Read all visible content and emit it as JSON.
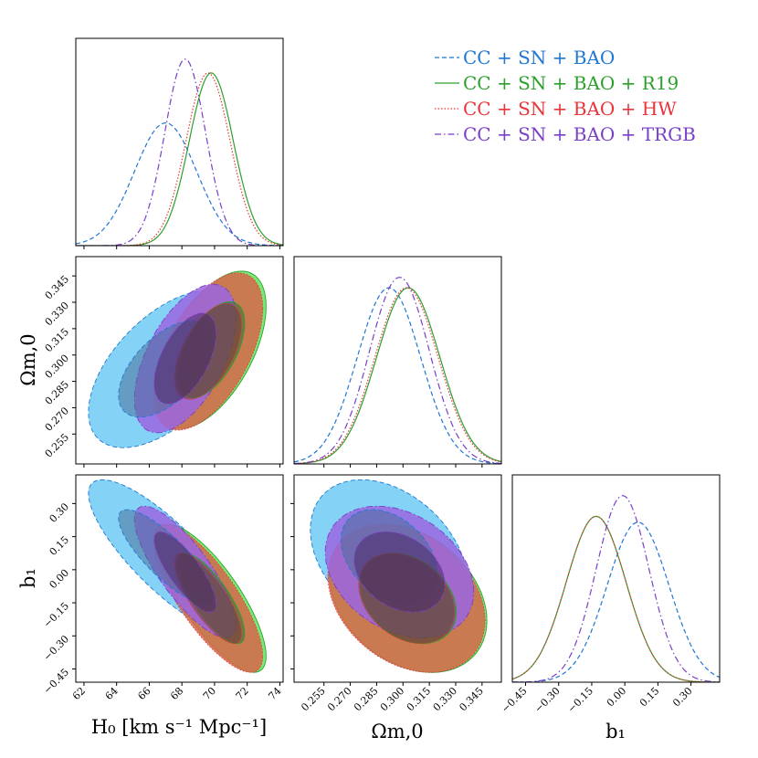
{
  "chart_data": {
    "type": "corner",
    "title": "",
    "parameters": [
      {
        "key": "H0",
        "label": "H₀ [km s⁻¹ Mpc⁻¹]",
        "range": [
          61.5,
          74.2
        ],
        "ticks": [
          "62",
          "64",
          "66",
          "68",
          "70",
          "72",
          "74"
        ],
        "tick_values": [
          62,
          64,
          66,
          68,
          70,
          72,
          74
        ]
      },
      {
        "key": "Om",
        "label": "Ωm,0",
        "range": [
          0.238,
          0.356
        ],
        "ticks": [
          "0.255",
          "0.270",
          "0.285",
          "0.300",
          "0.315",
          "0.330",
          "0.345"
        ],
        "tick_values": [
          0.255,
          0.27,
          0.285,
          0.3,
          0.315,
          0.33,
          0.345
        ]
      },
      {
        "key": "b1",
        "label": "b₁",
        "range": [
          -0.51,
          0.43
        ],
        "ticks": [
          "−0.45",
          "−0.30",
          "−0.15",
          "0.00",
          "0.15",
          "0.30"
        ],
        "tick_values": [
          -0.45,
          -0.3,
          -0.15,
          0.0,
          0.15,
          0.3
        ]
      }
    ],
    "series": [
      {
        "name": "CC + SN + BAO",
        "line_color": "#1f77d4",
        "fill_outer": "#6fcbf4",
        "fill_inner": "#4a6f9a",
        "dash": "5,3",
        "mean": {
          "H0": 67.0,
          "Om": 0.292,
          "b1": 0.06
        },
        "sigma": {
          "H0": 1.9,
          "Om": 0.018,
          "b1": 0.14
        },
        "corr": {
          "H0_Om": 0.55,
          "H0_b1": -0.82,
          "Om_b1": -0.35
        }
      },
      {
        "name": "CC + SN + BAO + R19",
        "line_color": "#2ca02c",
        "fill_outer": "#5ee85e",
        "fill_inner": "#3d6b3d",
        "dash": "",
        "mean": {
          "H0": 69.8,
          "Om": 0.303,
          "b1": -0.13
        },
        "sigma": {
          "H0": 1.35,
          "Om": 0.018,
          "b1": 0.135
        },
        "corr": {
          "H0_Om": 0.55,
          "H0_b1": -0.78,
          "Om_b1": -0.3
        }
      },
      {
        "name": "CC + SN + BAO + HW",
        "line_color": "#e8343a",
        "fill_outer": "#d9664a",
        "fill_inner": "#7a3a3a",
        "dash": "1.5,2",
        "mean": {
          "H0": 69.6,
          "Om": 0.302,
          "b1": -0.13
        },
        "sigma": {
          "H0": 1.35,
          "Om": 0.018,
          "b1": 0.135
        },
        "corr": {
          "H0_Om": 0.55,
          "H0_b1": -0.78,
          "Om_b1": -0.3
        }
      },
      {
        "name": "CC + SN + BAO + TRGB",
        "line_color": "#7a3fc8",
        "fill_outer": "#9a66e0",
        "fill_inner": "#4a2a6a",
        "dash": "7,3,1.5,3",
        "mean": {
          "H0": 68.2,
          "Om": 0.298,
          "b1": -0.01
        },
        "sigma": {
          "H0": 1.25,
          "Om": 0.017,
          "b1": 0.12
        },
        "corr": {
          "H0_Om": 0.55,
          "H0_b1": -0.8,
          "Om_b1": -0.3
        }
      }
    ],
    "legend_position": "top-right"
  }
}
